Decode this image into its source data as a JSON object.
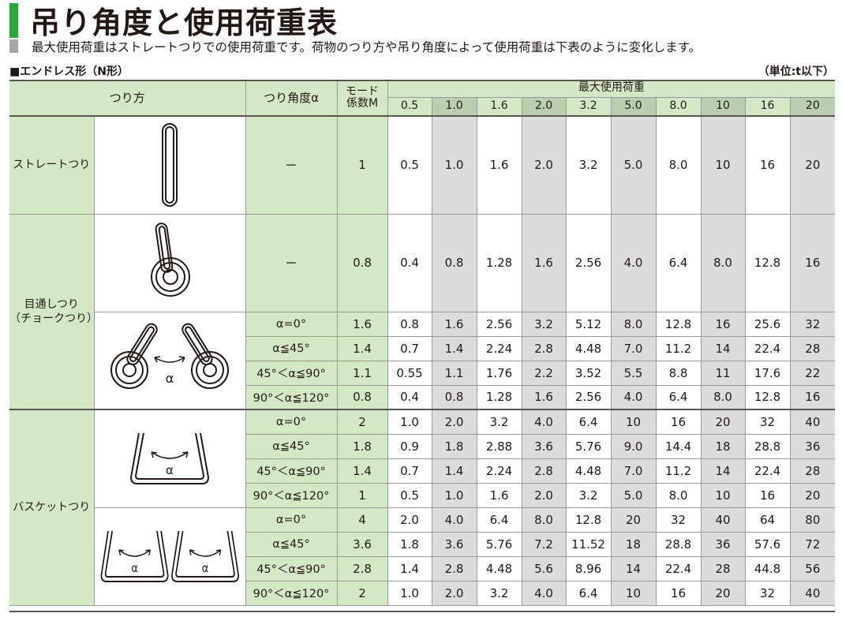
{
  "title": "吊り角度と使用荷重表",
  "subtitle": "最大使用荷重はストレートつりでの使用荷重です。荷物のつり方や吊り角度によって使用荷重は下表のように変化します。",
  "section_label": "■エンドレス形（N形）",
  "unit_label": "（単位:t以下）",
  "headers": {
    "method": "つり方",
    "angle": "つり角度α",
    "mode_line1": "モード",
    "mode_line2": "係数M",
    "max_load": "最大使用荷重"
  },
  "capacities": [
    "0.5",
    "1.0",
    "1.6",
    "2.0",
    "3.2",
    "5.0",
    "8.0",
    "10",
    "16",
    "20"
  ],
  "groups": {
    "straight": "ストレートつり",
    "choke_line1": "目通しつり",
    "choke_line2": "（チョークつり）",
    "basket": "バスケットつり"
  },
  "icon_alpha": "α",
  "rows": [
    {
      "angle": "ー",
      "mode": "1",
      "values": [
        "0.5",
        "1.0",
        "1.6",
        "2.0",
        "3.2",
        "5.0",
        "8.0",
        "10",
        "16",
        "20"
      ]
    },
    {
      "angle": "ー",
      "mode": "0.8",
      "values": [
        "0.4",
        "0.8",
        "1.28",
        "1.6",
        "2.56",
        "4.0",
        "6.4",
        "8.0",
        "12.8",
        "16"
      ]
    },
    {
      "angle": "α=0°",
      "mode": "1.6",
      "values": [
        "0.8",
        "1.6",
        "2.56",
        "3.2",
        "5.12",
        "8.0",
        "12.8",
        "16",
        "25.6",
        "32"
      ]
    },
    {
      "angle": "α≦45°",
      "mode": "1.4",
      "values": [
        "0.7",
        "1.4",
        "2.24",
        "2.8",
        "4.48",
        "7.0",
        "11.2",
        "14",
        "22.4",
        "28"
      ]
    },
    {
      "angle": "45°＜α≦90°",
      "mode": "1.1",
      "values": [
        "0.55",
        "1.1",
        "1.76",
        "2.2",
        "3.52",
        "5.5",
        "8.8",
        "11",
        "17.6",
        "22"
      ]
    },
    {
      "angle": "90°＜α≦120°",
      "mode": "0.8",
      "values": [
        "0.4",
        "0.8",
        "1.28",
        "1.6",
        "2.56",
        "4.0",
        "6.4",
        "8.0",
        "12.8",
        "16"
      ]
    },
    {
      "angle": "α=0°",
      "mode": "2",
      "values": [
        "1.0",
        "2.0",
        "3.2",
        "4.0",
        "6.4",
        "10",
        "16",
        "20",
        "32",
        "40"
      ]
    },
    {
      "angle": "α≦45°",
      "mode": "1.8",
      "values": [
        "0.9",
        "1.8",
        "2.88",
        "3.6",
        "5.76",
        "9.0",
        "14.4",
        "18",
        "28.8",
        "36"
      ]
    },
    {
      "angle": "45°＜α≦90°",
      "mode": "1.4",
      "values": [
        "0.7",
        "1.4",
        "2.24",
        "2.8",
        "4.48",
        "7.0",
        "11.2",
        "14",
        "22.4",
        "28"
      ]
    },
    {
      "angle": "90°＜α≦120°",
      "mode": "1",
      "values": [
        "0.5",
        "1.0",
        "1.6",
        "2.0",
        "3.2",
        "5.0",
        "8.0",
        "10",
        "16",
        "20"
      ]
    },
    {
      "angle": "α=0°",
      "mode": "4",
      "values": [
        "2.0",
        "4.0",
        "6.4",
        "8.0",
        "12.8",
        "20",
        "32",
        "40",
        "64",
        "80"
      ]
    },
    {
      "angle": "α≦45°",
      "mode": "3.6",
      "values": [
        "1.8",
        "3.6",
        "5.76",
        "7.2",
        "11.52",
        "18",
        "28.8",
        "36",
        "57.6",
        "72"
      ]
    },
    {
      "angle": "45°＜α≦90°",
      "mode": "2.8",
      "values": [
        "1.4",
        "2.8",
        "4.48",
        "5.6",
        "8.96",
        "14",
        "22.4",
        "28",
        "44.8",
        "56"
      ]
    },
    {
      "angle": "90°＜α≦120°",
      "mode": "2",
      "values": [
        "1.0",
        "2.0",
        "3.2",
        "4.0",
        "6.4",
        "10",
        "16",
        "20",
        "32",
        "40"
      ]
    }
  ],
  "colors": {
    "accent": "#2aa63a",
    "header_green": "#d5e8c6",
    "header_dark": "#b9cfb0",
    "column_shade": "#dcdcdc"
  }
}
